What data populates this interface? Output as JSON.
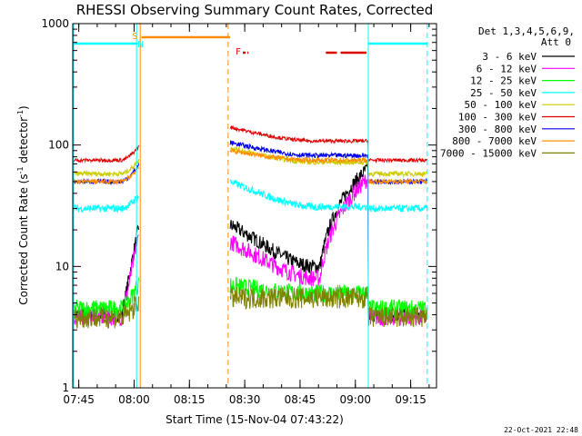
{
  "chart_data": {
    "type": "line",
    "title": "RHESSI Observing Summary Count Rates, Corrected",
    "xlabel": "Start Time (15-Nov-04 07:43:22)",
    "ylabel_main": "Corrected Count Rate (s",
    "ylabel_sup1": "-1",
    "ylabel_mid": " detector",
    "ylabel_sup2": "-1",
    "ylabel_end": ")",
    "yscale": "log",
    "ylim": [
      1,
      1000
    ],
    "xlim": [
      "07:43:22",
      "09:22:00"
    ],
    "x_ticks": [
      "07:45",
      "08:00",
      "08:15",
      "08:30",
      "08:45",
      "09:00",
      "09:15"
    ],
    "y_ticks": [
      "1",
      "10",
      "100",
      "1000"
    ],
    "legend_header_1": "Det 1,3,4,5,6,9,",
    "legend_header_2": "Att 0",
    "legend_position": "top-right",
    "series": [
      {
        "name": "3 - 6 keV",
        "color": "#000000"
      },
      {
        "name": "6 - 12 keV",
        "color": "#ff00ff"
      },
      {
        "name": "12 - 25 keV",
        "color": "#00ff00"
      },
      {
        "name": "25 - 50 keV",
        "color": "#00ffff"
      },
      {
        "name": "50 - 100 keV",
        "color": "#cccc00"
      },
      {
        "name": "100 - 300 keV",
        "color": "#dd0000"
      },
      {
        "name": "300 - 800 keV",
        "color": "#0000ee"
      },
      {
        "name": "800 - 7000 keV",
        "color": "#ff8c00"
      },
      {
        "name": "7000 - 15000 keV",
        "color": "#808000"
      }
    ],
    "flags": [
      {
        "label": "S",
        "color": "#ff8c00"
      },
      {
        "label": "N",
        "color": "#00ffff"
      },
      {
        "label": "F",
        "color": "#ee0000"
      }
    ],
    "footer": "22-Oct-2021 22:48"
  }
}
